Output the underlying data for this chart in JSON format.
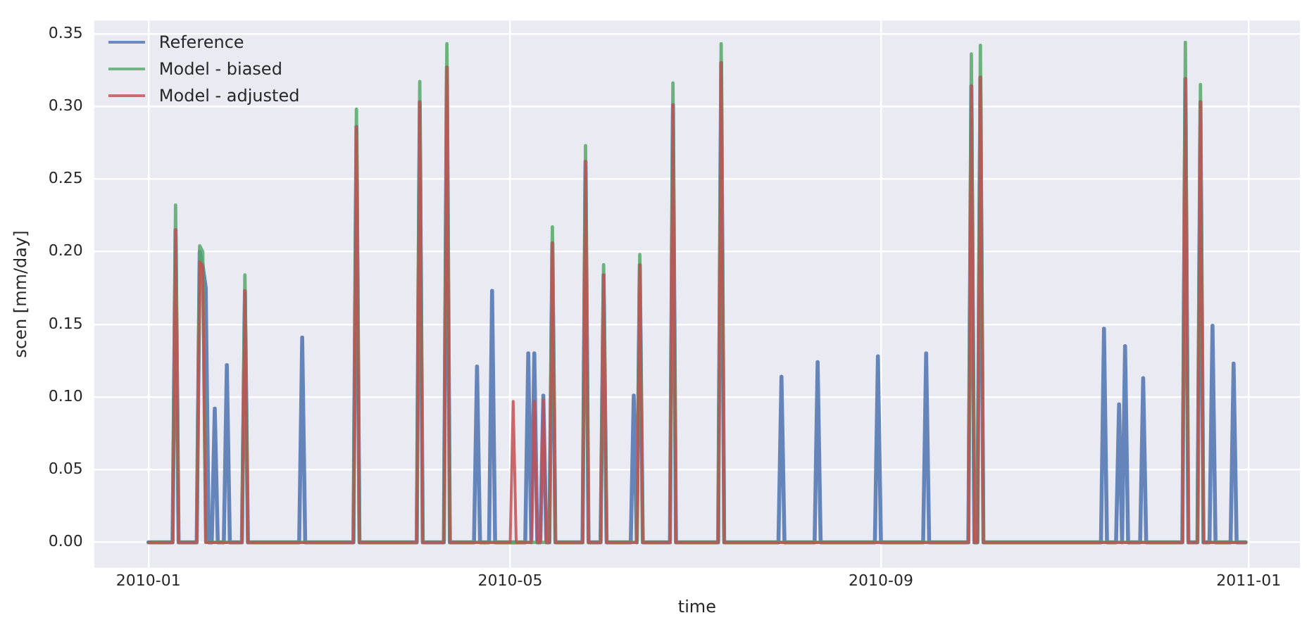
{
  "chart_data": {
    "type": "line",
    "xlabel": "time",
    "ylabel": "scen [mm/day]",
    "x": [
      "2010-01-01",
      "2010-01-09",
      "2010-01-10",
      "2010-01-11",
      "2010-01-17",
      "2010-01-18",
      "2010-01-19",
      "2010-01-20",
      "2010-01-21",
      "2010-01-22",
      "2010-01-23",
      "2010-01-24",
      "2010-01-26",
      "2010-01-27",
      "2010-01-28",
      "2010-02-01",
      "2010-02-02",
      "2010-02-03",
      "2010-02-20",
      "2010-02-21",
      "2010-02-22",
      "2010-03-10",
      "2010-03-11",
      "2010-03-12",
      "2010-03-31",
      "2010-04-01",
      "2010-04-02",
      "2010-04-09",
      "2010-04-10",
      "2010-04-11",
      "2010-04-19",
      "2010-04-20",
      "2010-04-21",
      "2010-04-24",
      "2010-04-25",
      "2010-04-26",
      "2010-05-01",
      "2010-05-02",
      "2010-05-03",
      "2010-05-06",
      "2010-05-07",
      "2010-05-08",
      "2010-05-09",
      "2010-05-10",
      "2010-05-11",
      "2010-05-12",
      "2010-05-13",
      "2010-05-14",
      "2010-05-15",
      "2010-05-16",
      "2010-05-25",
      "2010-05-26",
      "2010-05-27",
      "2010-05-31",
      "2010-06-01",
      "2010-06-02",
      "2010-06-10",
      "2010-06-11",
      "2010-06-12",
      "2010-06-13",
      "2010-06-14",
      "2010-06-23",
      "2010-06-24",
      "2010-06-25",
      "2010-07-09",
      "2010-07-10",
      "2010-07-11",
      "2010-07-29",
      "2010-07-30",
      "2010-07-31",
      "2010-08-10",
      "2010-08-11",
      "2010-08-12",
      "2010-08-30",
      "2010-08-31",
      "2010-09-01",
      "2010-09-15",
      "2010-09-16",
      "2010-09-17",
      "2010-09-30",
      "2010-10-01",
      "2010-10-02",
      "2010-10-03",
      "2010-10-04",
      "2010-10-05",
      "2010-11-13",
      "2010-11-14",
      "2010-11-15",
      "2010-11-18",
      "2010-11-19",
      "2010-11-20",
      "2010-11-21",
      "2010-11-22",
      "2010-11-26",
      "2010-11-27",
      "2010-11-28",
      "2010-12-10",
      "2010-12-11",
      "2010-12-12",
      "2010-12-15",
      "2010-12-16",
      "2010-12-17",
      "2010-12-19",
      "2010-12-20",
      "2010-12-21",
      "2010-12-26",
      "2010-12-27",
      "2010-12-28",
      "2010-12-31"
    ],
    "series": [
      {
        "name": "Reference",
        "color": "#4c72b0",
        "values": [
          0,
          0,
          0.215,
          0,
          0,
          0.2,
          0.19,
          0.175,
          0,
          0,
          0.092,
          0,
          0,
          0.122,
          0,
          0,
          0.173,
          0,
          0,
          0.141,
          0,
          0,
          0.286,
          0,
          0,
          0.303,
          0,
          0,
          0.327,
          0,
          0,
          0.121,
          0,
          0,
          0.173,
          0,
          0,
          0,
          0,
          0,
          0.13,
          0,
          0.13,
          0,
          0,
          0.101,
          0,
          0,
          0.206,
          0,
          0,
          0.262,
          0,
          0,
          0.184,
          0,
          0,
          0.101,
          0,
          0.191,
          0,
          0,
          0.301,
          0,
          0,
          0.33,
          0,
          0,
          0.114,
          0,
          0,
          0.124,
          0,
          0,
          0.128,
          0,
          0,
          0.13,
          0,
          0,
          0.314,
          0,
          0,
          0.32,
          0,
          0,
          0.147,
          0,
          0,
          0.095,
          0,
          0.135,
          0,
          0,
          0.113,
          0,
          0,
          0.319,
          0,
          0,
          0.303,
          0,
          0,
          0.149,
          0,
          0,
          0.123,
          0,
          0
        ]
      },
      {
        "name": "Model - biased",
        "color": "#55a868",
        "values": [
          0,
          0,
          0.232,
          0,
          0,
          0.204,
          0.2,
          0,
          0,
          0,
          0,
          0,
          0,
          0,
          0,
          0,
          0.184,
          0,
          0,
          0,
          0,
          0,
          0.298,
          0,
          0,
          0.317,
          0,
          0,
          0.343,
          0,
          0,
          0,
          0,
          0,
          0,
          0,
          0,
          0,
          0,
          0,
          0,
          0,
          0,
          0,
          0,
          0,
          0,
          0,
          0.217,
          0,
          0,
          0.273,
          0,
          0,
          0.191,
          0,
          0,
          0,
          0,
          0.198,
          0,
          0,
          0.316,
          0,
          0,
          0.343,
          0,
          0,
          0,
          0,
          0,
          0,
          0,
          0,
          0,
          0,
          0,
          0,
          0,
          0,
          0.336,
          0,
          0,
          0.342,
          0,
          0,
          0,
          0,
          0,
          0,
          0,
          0,
          0,
          0,
          0,
          0,
          0,
          0.344,
          0,
          0,
          0.315,
          0,
          0,
          0,
          0,
          0,
          0,
          0,
          0
        ]
      },
      {
        "name": "Model - adjusted",
        "color": "#c44e52",
        "values": [
          0,
          0,
          0.215,
          0,
          0,
          0.193,
          0.19,
          0,
          0,
          0,
          0,
          0,
          0,
          0,
          0,
          0,
          0.173,
          0,
          0,
          0,
          0,
          0,
          0.286,
          0,
          0,
          0.303,
          0,
          0,
          0.327,
          0,
          0,
          0,
          0,
          0,
          0,
          0,
          0,
          0.097,
          0,
          0,
          0,
          0,
          0.097,
          0,
          0,
          0.098,
          0,
          0,
          0.206,
          0,
          0,
          0.262,
          0,
          0,
          0.184,
          0,
          0,
          0,
          0,
          0.191,
          0,
          0,
          0.301,
          0,
          0,
          0.33,
          0,
          0,
          0,
          0,
          0,
          0,
          0,
          0,
          0,
          0,
          0,
          0,
          0,
          0,
          0.314,
          0,
          0,
          0.32,
          0,
          0,
          0,
          0,
          0,
          0,
          0,
          0,
          0,
          0,
          0,
          0,
          0,
          0.319,
          0,
          0,
          0.303,
          0,
          0,
          0,
          0,
          0,
          0,
          0,
          0
        ]
      }
    ],
    "xlim": [
      "2009-12-14",
      "2011-01-18"
    ],
    "xticks": [
      "2010-01",
      "2010-05",
      "2010-09",
      "2011-01"
    ],
    "ylim": [
      -0.0175,
      0.359
    ],
    "yticks": [
      {
        "value": 0,
        "label": "0.00"
      },
      {
        "value": 0.05,
        "label": "0.05"
      },
      {
        "value": 0.1,
        "label": "0.10"
      },
      {
        "value": 0.15,
        "label": "0.15"
      },
      {
        "value": 0.2,
        "label": "0.20"
      },
      {
        "value": 0.25,
        "label": "0.25"
      },
      {
        "value": 0.3,
        "label": "0.30"
      },
      {
        "value": 0.35,
        "label": "0.35"
      }
    ],
    "grid": true,
    "legend": "top left",
    "marker": "none",
    "line_style": "solid"
  }
}
